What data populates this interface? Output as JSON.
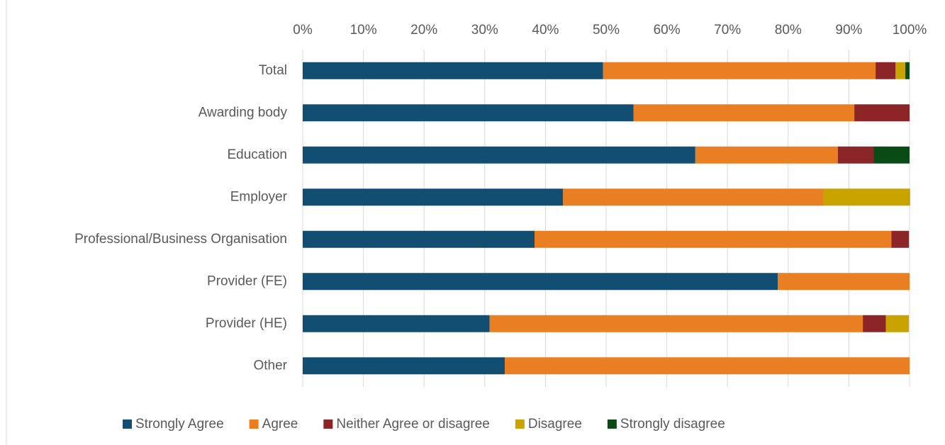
{
  "chart_data": {
    "type": "bar",
    "orientation": "horizontal",
    "stacked": true,
    "categories": [
      "Total",
      "Awarding body",
      "Education",
      "Employer",
      "Professional/Business Organisation",
      "Provider (FE)",
      "Provider (HE)",
      "Other"
    ],
    "series": [
      {
        "name": "Strongly Agree",
        "color": "#124e72",
        "values": [
          49.5,
          54.5,
          64.7,
          42.9,
          38.2,
          78.3,
          30.8,
          33.3
        ]
      },
      {
        "name": "Agree",
        "color": "#e97e22",
        "values": [
          44.9,
          36.4,
          23.5,
          42.9,
          58.8,
          21.7,
          61.5,
          66.7
        ]
      },
      {
        "name": "Neither Agree or disagree",
        "color": "#8b2527",
        "values": [
          3.3,
          9.1,
          5.9,
          0,
          2.9,
          0,
          3.8,
          0
        ]
      },
      {
        "name": "Disagree",
        "color": "#c9a300",
        "values": [
          1.6,
          0,
          0,
          14.3,
          0,
          0,
          3.8,
          0
        ]
      },
      {
        "name": "Strongly disagree",
        "color": "#0a4a14",
        "values": [
          0.7,
          0,
          5.9,
          0,
          0,
          0,
          0,
          0
        ]
      }
    ],
    "xlim": [
      0,
      100
    ],
    "xticks": [
      {
        "value": 0,
        "label": "0%"
      },
      {
        "value": 10,
        "label": "10%"
      },
      {
        "value": 20,
        "label": "20%"
      },
      {
        "value": 30,
        "label": "30%"
      },
      {
        "value": 40,
        "label": "40%"
      },
      {
        "value": 50,
        "label": "50%"
      },
      {
        "value": 60,
        "label": "60%"
      },
      {
        "value": 70,
        "label": "70%"
      },
      {
        "value": 80,
        "label": "80%"
      },
      {
        "value": 90,
        "label": "90%"
      },
      {
        "value": 100,
        "label": "100%"
      }
    ],
    "grid": true,
    "legend": "bottom"
  }
}
